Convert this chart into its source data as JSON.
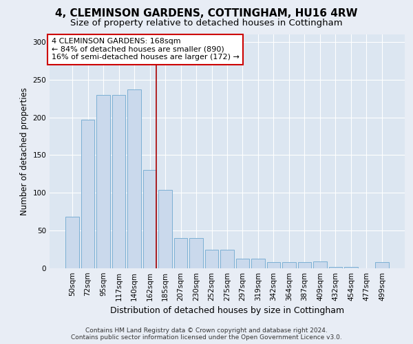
{
  "title": "4, CLEMINSON GARDENS, COTTINGHAM, HU16 4RW",
  "subtitle": "Size of property relative to detached houses in Cottingham",
  "xlabel": "Distribution of detached houses by size in Cottingham",
  "ylabel": "Number of detached properties",
  "bar_labels": [
    "50sqm",
    "72sqm",
    "95sqm",
    "117sqm",
    "140sqm",
    "162sqm",
    "185sqm",
    "207sqm",
    "230sqm",
    "252sqm",
    "275sqm",
    "297sqm",
    "319sqm",
    "342sqm",
    "364sqm",
    "387sqm",
    "409sqm",
    "432sqm",
    "454sqm",
    "477sqm",
    "499sqm"
  ],
  "bar_values": [
    68,
    197,
    230,
    230,
    237,
    130,
    104,
    40,
    40,
    25,
    25,
    13,
    13,
    8,
    8,
    8,
    9,
    2,
    2,
    0,
    8
  ],
  "bar_color": "#cad9ec",
  "bar_edge_color": "#7bafd4",
  "annotation_text": "4 CLEMINSON GARDENS: 168sqm\n← 84% of detached houses are smaller (890)\n16% of semi-detached houses are larger (172) →",
  "annotation_box_color": "#ffffff",
  "annotation_box_edge_color": "#cc0000",
  "vline_x_bar_idx": 5,
  "vline_color": "#aa0000",
  "ylim": [
    0,
    310
  ],
  "yticks": [
    0,
    50,
    100,
    150,
    200,
    250,
    300
  ],
  "background_color": "#e8edf5",
  "plot_bg_color": "#dce6f1",
  "footer": "Contains HM Land Registry data © Crown copyright and database right 2024.\nContains public sector information licensed under the Open Government Licence v3.0.",
  "title_fontsize": 11,
  "subtitle_fontsize": 9.5,
  "label_fontsize": 8.5,
  "tick_fontsize": 7.5,
  "footer_fontsize": 6.5
}
